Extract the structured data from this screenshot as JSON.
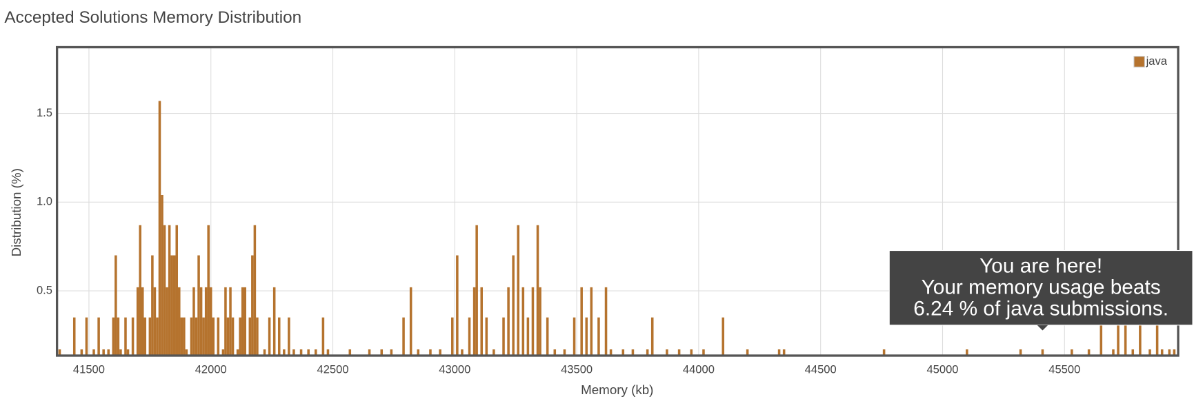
{
  "chart_data": {
    "type": "bar",
    "title": "Accepted Solutions Memory Distribution",
    "x_label": "Memory (kb)",
    "y_label": "Distribution (%)",
    "bin_width": 10,
    "xlim": [
      41369,
      45966
    ],
    "ylim": [
      0.135,
      1.873
    ],
    "xticks": [
      41500,
      42000,
      42500,
      43000,
      43500,
      44000,
      44500,
      45000,
      45500
    ],
    "yticks": [
      0.5,
      {
        "value": 1,
        "label": "1.0"
      },
      1.5
    ],
    "grid": true,
    "legend": "top-right",
    "series": [
      {
        "name": "java",
        "color": "#b5732e",
        "x": [
          41380,
          41440,
          41470,
          41490,
          41520,
          41540,
          41560,
          41580,
          41600,
          41610,
          41620,
          41630,
          41650,
          41660,
          41680,
          41700,
          41710,
          41720,
          41730,
          41750,
          41760,
          41770,
          41780,
          41790,
          41800,
          41810,
          41820,
          41830,
          41840,
          41850,
          41860,
          41870,
          41880,
          41890,
          41900,
          41920,
          41930,
          41940,
          41950,
          41960,
          41970,
          41980,
          41990,
          42000,
          42010,
          42030,
          42050,
          42060,
          42070,
          42080,
          42090,
          42110,
          42120,
          42130,
          42140,
          42160,
          42170,
          42180,
          42190,
          42220,
          42240,
          42260,
          42280,
          42300,
          42320,
          42340,
          42370,
          42400,
          42430,
          42460,
          42480,
          42570,
          42650,
          42700,
          42740,
          42790,
          42820,
          42850,
          42900,
          42940,
          42990,
          43010,
          43030,
          43060,
          43080,
          43090,
          43110,
          43130,
          43160,
          43200,
          43220,
          43240,
          43260,
          43280,
          43300,
          43320,
          43340,
          43350,
          43380,
          43410,
          43450,
          43490,
          43520,
          43540,
          43560,
          43590,
          43620,
          43640,
          43690,
          43730,
          43790,
          43810,
          43870,
          43920,
          43970,
          44020,
          44100,
          44200,
          44330,
          44350,
          44760,
          45100,
          45320,
          45410,
          45530,
          45600,
          45650,
          45700,
          45720,
          45750,
          45780,
          45810,
          45850,
          45880,
          45900,
          45930,
          45950
        ],
        "values": [
          0.17,
          0.35,
          0.17,
          0.35,
          0.17,
          0.35,
          0.17,
          0.17,
          0.35,
          0.7,
          0.35,
          0.17,
          0.35,
          0.17,
          0.35,
          0.52,
          0.87,
          0.52,
          0.35,
          0.35,
          0.7,
          0.52,
          0.35,
          1.57,
          1.04,
          0.87,
          0.52,
          0.87,
          0.7,
          0.7,
          0.87,
          0.52,
          0.35,
          0.35,
          0.17,
          0.35,
          0.52,
          0.35,
          0.7,
          0.52,
          0.35,
          0.52,
          0.87,
          0.52,
          0.35,
          0.35,
          0.17,
          0.52,
          0.35,
          0.52,
          0.35,
          0.17,
          0.35,
          0.52,
          0.52,
          0.35,
          0.7,
          0.87,
          0.35,
          0.17,
          0.35,
          0.52,
          0.35,
          0.17,
          0.35,
          0.17,
          0.17,
          0.17,
          0.17,
          0.35,
          0.17,
          0.17,
          0.17,
          0.17,
          0.17,
          0.35,
          0.52,
          0.17,
          0.17,
          0.17,
          0.35,
          0.7,
          0.17,
          0.35,
          0.52,
          0.87,
          0.52,
          0.35,
          0.17,
          0.35,
          0.52,
          0.7,
          0.87,
          0.52,
          0.35,
          0.52,
          0.87,
          0.52,
          0.35,
          0.17,
          0.17,
          0.35,
          0.52,
          0.35,
          0.52,
          0.35,
          0.52,
          0.17,
          0.17,
          0.17,
          0.17,
          0.35,
          0.17,
          0.17,
          0.17,
          0.17,
          0.35,
          0.17,
          0.17,
          0.17,
          0.17,
          0.17,
          0.17,
          0.17,
          0.17,
          0.17,
          0.35,
          0.17,
          0.35,
          0.35,
          0.17,
          0.35,
          0.17,
          0.35,
          0.17,
          0.17,
          0.17
        ]
      }
    ],
    "annotation": {
      "x": 45410,
      "lines": [
        "You are here!",
        "Your memory usage beats",
        "6.24 % of java submissions."
      ]
    }
  }
}
